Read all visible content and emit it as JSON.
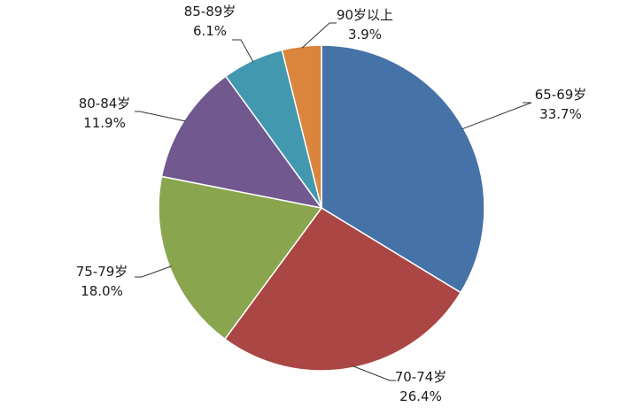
{
  "chart_data": {
    "type": "pie",
    "title": "",
    "slices": [
      {
        "label": "65-69岁",
        "value": 33.7,
        "value_text": "33.7%",
        "color": "#4572A7"
      },
      {
        "label": "70-74岁",
        "value": 26.4,
        "value_text": "26.4%",
        "color": "#AA4643"
      },
      {
        "label": "75-79岁",
        "value": 18.0,
        "value_text": "18.0%",
        "color": "#89A54E"
      },
      {
        "label": "80-84岁",
        "value": 11.9,
        "value_text": "11.9%",
        "color": "#71588F"
      },
      {
        "label": "85-89岁",
        "value": 6.1,
        "value_text": "6.1%",
        "color": "#4198AF"
      },
      {
        "label": "90岁以上",
        "value": 3.9,
        "value_text": "3.9%",
        "color": "#DB843D"
      }
    ],
    "start_angle": "12 o'clock",
    "direction": "clockwise",
    "legend": "none"
  }
}
